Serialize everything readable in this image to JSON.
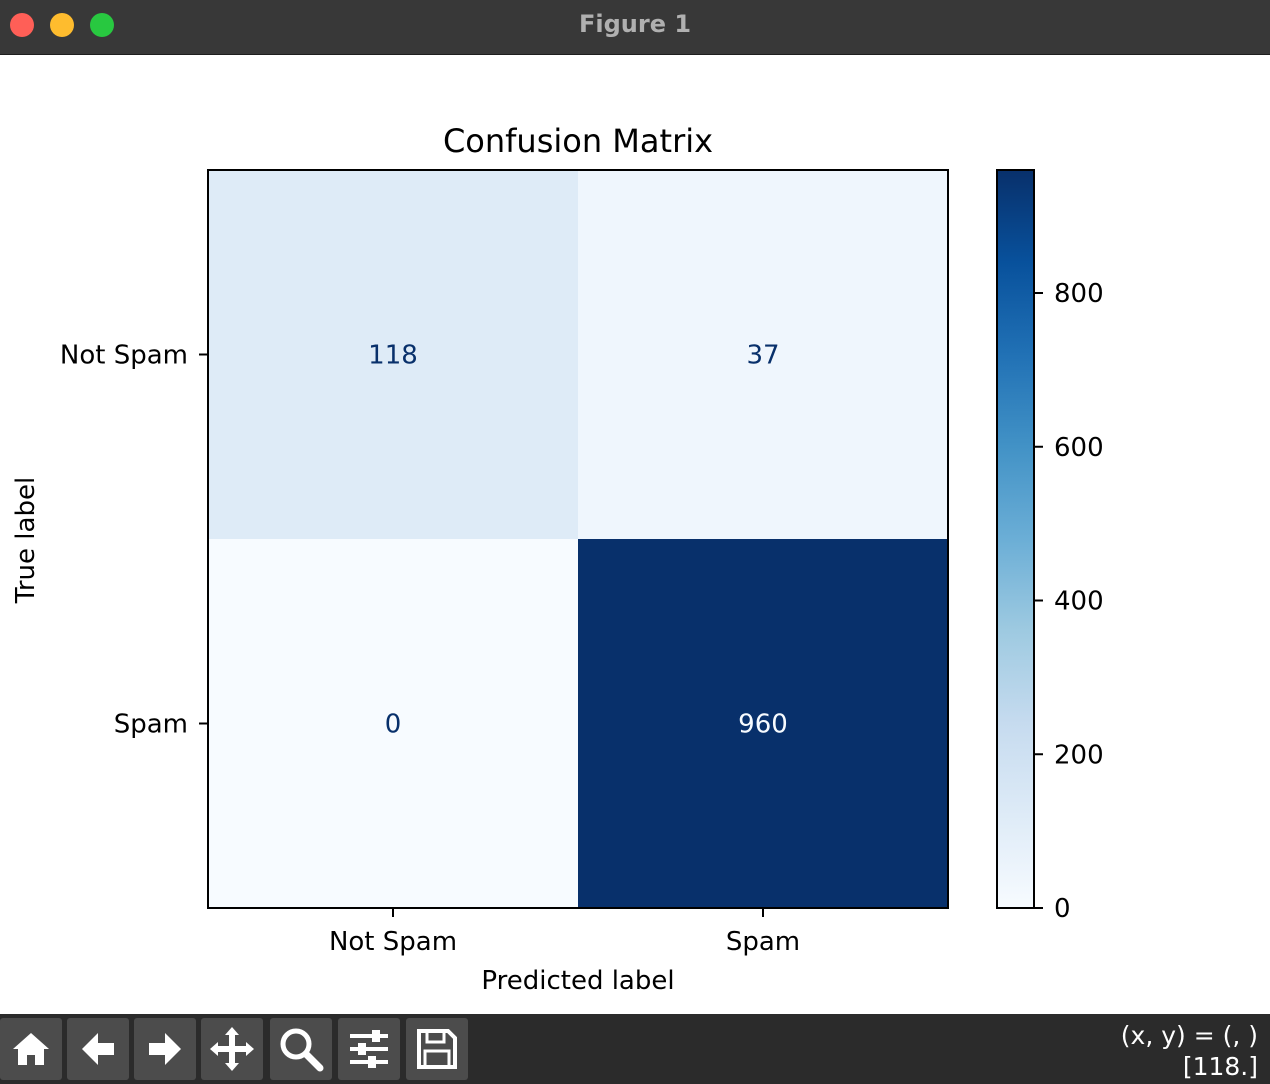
{
  "window": {
    "title": "Figure 1",
    "controls": {
      "close_color": "#ff5f57",
      "minimize_color": "#febc2e",
      "maximize_color": "#28c840"
    }
  },
  "chart_data": {
    "type": "heatmap",
    "title": "Confusion Matrix",
    "xlabel": "Predicted label",
    "ylabel": "True label",
    "x_categories": [
      "Not Spam",
      "Spam"
    ],
    "y_categories": [
      "Not Spam",
      "Spam"
    ],
    "values": [
      [
        118,
        37
      ],
      [
        0,
        960
      ]
    ],
    "colormap": "Blues",
    "colorbar": {
      "range": [
        0,
        960
      ],
      "ticks": [
        0,
        200,
        400,
        600,
        800
      ]
    },
    "grid": false
  },
  "toolbar": {
    "buttons": [
      {
        "name": "home-icon",
        "tooltip": "Reset original view"
      },
      {
        "name": "back-icon",
        "tooltip": "Back to previous view"
      },
      {
        "name": "forward-icon",
        "tooltip": "Forward to next view"
      },
      {
        "name": "pan-icon",
        "tooltip": "Pan axes"
      },
      {
        "name": "zoom-icon",
        "tooltip": "Zoom to rectangle"
      },
      {
        "name": "configure-subplots-icon",
        "tooltip": "Configure subplots"
      },
      {
        "name": "save-icon",
        "tooltip": "Save the figure"
      }
    ],
    "coords_line1": "(x, y) = (, )",
    "coords_line2": "[118.]"
  }
}
